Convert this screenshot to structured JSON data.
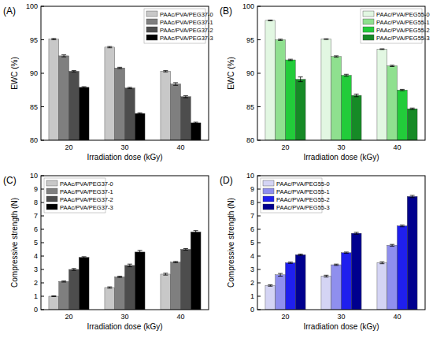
{
  "chart_data": [
    {
      "type": "bar",
      "title": "(A)",
      "x_label": "Irradiation dose (kGy)",
      "y_label": "EWC (%)",
      "categories": [
        "20",
        "30",
        "40"
      ],
      "ylim": [
        80,
        100
      ],
      "yticks": [
        80,
        85,
        90,
        95,
        100
      ],
      "legend": "upper right",
      "series": [
        {
          "name": "PAAc/PVA/PEG37-0",
          "color": "#c8c8c8",
          "values": [
            95.1,
            93.9,
            90.3
          ],
          "errors": [
            0.1,
            0.1,
            0.1
          ]
        },
        {
          "name": "PAAc/PVA/PEG37-1",
          "color": "#7f7f7f",
          "values": [
            92.6,
            90.8,
            88.4
          ],
          "errors": [
            0.15,
            0.1,
            0.2
          ]
        },
        {
          "name": "PAAc/PVA/PEG37-2",
          "color": "#4d4d4d",
          "values": [
            90.3,
            87.8,
            86.5
          ],
          "errors": [
            0.1,
            0.1,
            0.15
          ]
        },
        {
          "name": "PAAc/PVA/PEG37-3",
          "color": "#000000",
          "values": [
            87.9,
            84.0,
            82.6
          ],
          "errors": [
            0.1,
            0.1,
            0.1
          ]
        }
      ]
    },
    {
      "type": "bar",
      "title": "(B)",
      "x_label": "Irradiation dose (kGy)",
      "y_label": "EWC (%)",
      "categories": [
        "20",
        "30",
        "40"
      ],
      "ylim": [
        80,
        100
      ],
      "yticks": [
        80,
        85,
        90,
        95,
        100
      ],
      "legend": "upper right",
      "series": [
        {
          "name": "PAAc/PVA/PEG55-0",
          "color": "#e2f7e2",
          "values": [
            97.9,
            95.1,
            93.6
          ],
          "errors": [
            0.05,
            0.05,
            0.05
          ]
        },
        {
          "name": "PAAc/PVA/PEG55-1",
          "color": "#8fe08f",
          "values": [
            95.0,
            92.5,
            91.1
          ],
          "errors": [
            0.1,
            0.1,
            0.1
          ]
        },
        {
          "name": "PAAc/PVA/PEG55-2",
          "color": "#22cc3a",
          "values": [
            92.0,
            89.7,
            87.5
          ],
          "errors": [
            0.1,
            0.15,
            0.1
          ]
        },
        {
          "name": "PAAc/PVA/PEG55-3",
          "color": "#168a26",
          "values": [
            89.1,
            86.7,
            84.7
          ],
          "errors": [
            0.35,
            0.2,
            0.1
          ]
        }
      ]
    },
    {
      "type": "bar",
      "title": "(C)",
      "x_label": "Irradiation dose (kGy)",
      "y_label": "Compressive strength (N)",
      "categories": [
        "20",
        "30",
        "40"
      ],
      "ylim": [
        0,
        10
      ],
      "yticks": [
        0,
        1,
        2,
        3,
        4,
        5,
        6,
        7,
        8,
        9,
        10
      ],
      "legend": "upper left",
      "series": [
        {
          "name": "PAAc/PVA/PEG37-0",
          "color": "#c8c8c8",
          "values": [
            1.0,
            1.65,
            2.65
          ],
          "errors": [
            0.03,
            0.05,
            0.07
          ]
        },
        {
          "name": "PAAc/PVA/PEG37-1",
          "color": "#7f7f7f",
          "values": [
            2.1,
            2.45,
            3.55
          ],
          "errors": [
            0.04,
            0.05,
            0.05
          ]
        },
        {
          "name": "PAAc/PVA/PEG37-2",
          "color": "#4d4d4d",
          "values": [
            3.0,
            3.3,
            4.5
          ],
          "errors": [
            0.07,
            0.1,
            0.06
          ]
        },
        {
          "name": "PAAc/PVA/PEG37-3",
          "color": "#000000",
          "values": [
            3.9,
            4.3,
            5.8
          ],
          "errors": [
            0.05,
            0.12,
            0.1
          ]
        }
      ]
    },
    {
      "type": "bar",
      "title": "(D)",
      "x_label": "Irradiation dose (kGy)",
      "y_label": "Compressive strength (N)",
      "categories": [
        "20",
        "30",
        "40"
      ],
      "ylim": [
        0,
        10
      ],
      "yticks": [
        0,
        1,
        2,
        3,
        4,
        5,
        6,
        7,
        8,
        9,
        10
      ],
      "legend": "upper left",
      "series": [
        {
          "name": "PAAc/PVA/PEG55-0",
          "color": "#d4d4f4",
          "values": [
            1.8,
            2.5,
            3.5
          ],
          "errors": [
            0.05,
            0.07,
            0.07
          ]
        },
        {
          "name": "PAAc/PVA/PEG55-1",
          "color": "#8f8fee",
          "values": [
            2.6,
            3.35,
            4.8
          ],
          "errors": [
            0.1,
            0.05,
            0.07
          ]
        },
        {
          "name": "PAAc/PVA/PEG55-2",
          "color": "#1f1fee",
          "values": [
            3.5,
            4.25,
            6.25
          ],
          "errors": [
            0.05,
            0.05,
            0.06
          ]
        },
        {
          "name": "PAAc/PVA/PEG55-3",
          "color": "#00008e",
          "values": [
            4.1,
            5.7,
            8.45
          ],
          "errors": [
            0.05,
            0.07,
            0.08
          ]
        }
      ]
    }
  ]
}
